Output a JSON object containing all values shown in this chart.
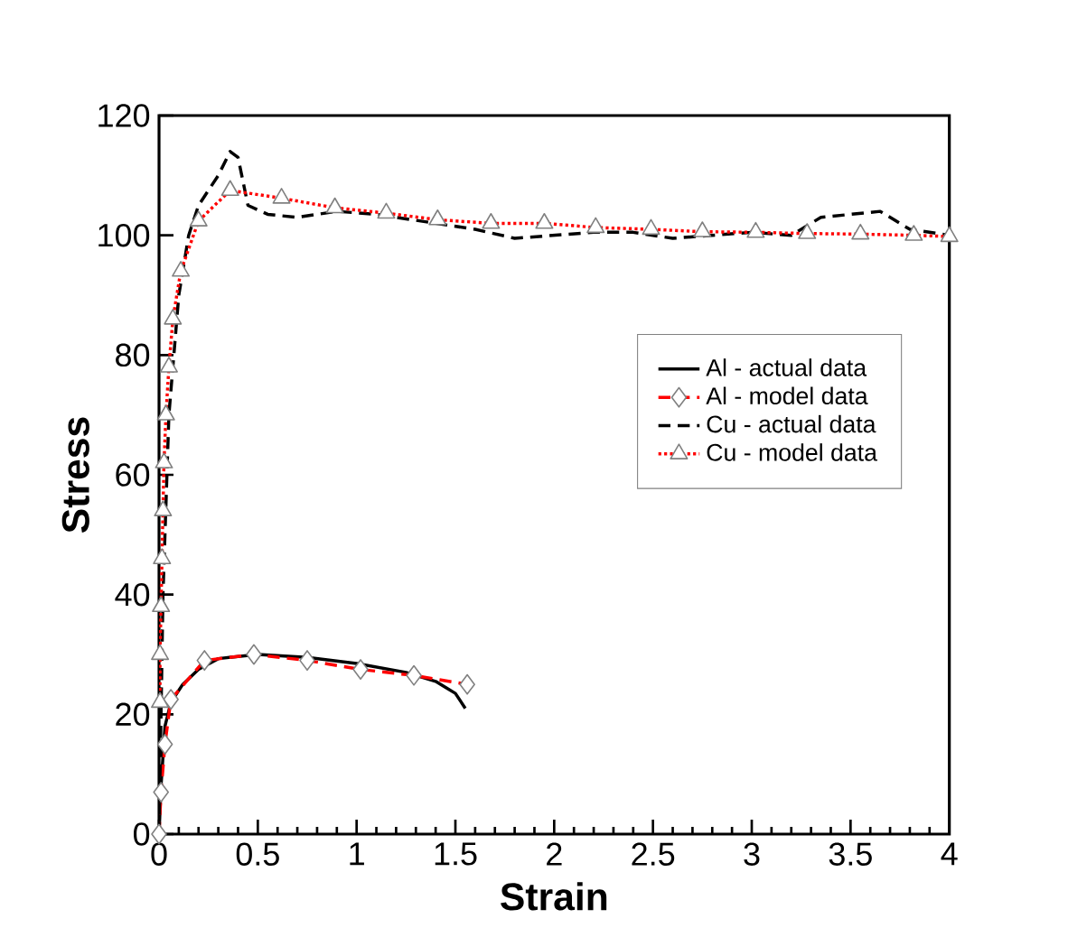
{
  "chart_data": {
    "type": "line",
    "xlabel": "Strain",
    "ylabel": "Stress",
    "xlim": [
      0,
      4
    ],
    "ylim": [
      0,
      120
    ],
    "xticks": [
      0,
      0.5,
      1,
      1.5,
      2,
      2.5,
      3,
      3.5,
      4
    ],
    "yticks": [
      0,
      20,
      40,
      60,
      80,
      100,
      120
    ],
    "legend": "right",
    "series": [
      {
        "name": "Al - actual data",
        "color": "#000000",
        "line_style": "solid",
        "marker": "none",
        "x": [
          0,
          0.01,
          0.03,
          0.06,
          0.12,
          0.2,
          0.3,
          0.5,
          0.75,
          1.0,
          1.25,
          1.4,
          1.5,
          1.55
        ],
        "values": [
          0,
          8,
          18,
          22,
          25,
          27.5,
          29.3,
          30,
          29.5,
          28.5,
          27,
          25.5,
          23.5,
          21
        ]
      },
      {
        "name": "Al - model data",
        "color": "#ff0000",
        "line_style": "dashed",
        "marker": "diamond",
        "x": [
          0,
          0.01,
          0.03,
          0.06,
          0.23,
          0.48,
          0.75,
          1.02,
          1.29,
          1.56
        ],
        "values": [
          0,
          7,
          15,
          22.5,
          29,
          30,
          29,
          27.5,
          26.5,
          25
        ]
      },
      {
        "name": "Cu - actual data",
        "color": "#000000",
        "line_style": "dashed",
        "marker": "none",
        "x": [
          0,
          0.02,
          0.05,
          0.1,
          0.15,
          0.2,
          0.3,
          0.36,
          0.4,
          0.45,
          0.55,
          0.7,
          0.9,
          1.1,
          1.3,
          1.6,
          1.8,
          2.0,
          2.2,
          2.4,
          2.6,
          2.8,
          3.0,
          3.2,
          3.35,
          3.5,
          3.65,
          3.8,
          4.0
        ],
        "values": [
          0,
          40,
          70,
          90,
          100,
          105,
          110,
          114,
          113,
          105,
          103.5,
          103,
          104,
          103.5,
          102.5,
          101,
          99.5,
          100,
          100.5,
          100.5,
          99.5,
          100,
          100.5,
          100,
          103,
          103.5,
          104,
          101,
          100
        ]
      },
      {
        "name": "Cu - model data",
        "color": "#ff0000",
        "line_style": "dotted",
        "marker": "triangle",
        "x": [
          0.005,
          0.005,
          0.01,
          0.015,
          0.02,
          0.025,
          0.035,
          0.05,
          0.07,
          0.11,
          0.2,
          0.36,
          0.62,
          0.89,
          1.15,
          1.41,
          1.68,
          1.95,
          2.21,
          2.49,
          2.75,
          3.02,
          3.28,
          3.55,
          3.82,
          4.0
        ],
        "values": [
          22,
          30,
          38,
          46,
          54,
          62,
          70,
          78,
          86,
          94,
          102.4,
          107.5,
          106.2,
          104.6,
          103.7,
          102.6,
          102,
          102,
          101.3,
          101,
          100.6,
          100.5,
          100.3,
          100.2,
          100,
          99.8
        ]
      }
    ]
  }
}
